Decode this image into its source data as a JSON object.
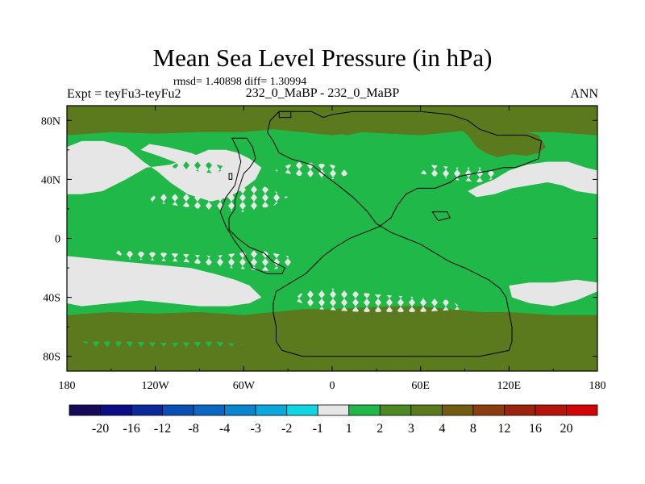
{
  "figure": {
    "title": "Mean Sea Level Pressure (in hPa)",
    "stats": "rmsd= 1.40898 diff= 1.30994",
    "left_label": "Expt = teyFu3-teyFu2",
    "center_label": "232_0_MaBP - 232_0_MaBP",
    "right_label": "ANN"
  },
  "colors": {
    "light": "#e6e6e6",
    "green": "#21b84a",
    "olive": "#5b7a1e",
    "coast": "#000000"
  },
  "chart_data": {
    "type": "heatmap",
    "title": "Mean Sea Level Pressure (in hPa)",
    "projection": "cylindrical equidistant",
    "xlim": [
      -180,
      180
    ],
    "ylim": [
      -90,
      90
    ],
    "x_ticks": [
      {
        "value": -180,
        "label": "180"
      },
      {
        "value": -120,
        "label": "120W"
      },
      {
        "value": -60,
        "label": "60W"
      },
      {
        "value": 0,
        "label": "0"
      },
      {
        "value": 60,
        "label": "60E"
      },
      {
        "value": 120,
        "label": "120E"
      },
      {
        "value": 180,
        "label": "180"
      }
    ],
    "y_ticks": [
      {
        "value": 80,
        "label": "80N"
      },
      {
        "value": 40,
        "label": "40N"
      },
      {
        "value": 0,
        "label": "0"
      },
      {
        "value": -40,
        "label": "40S"
      },
      {
        "value": -80,
        "label": "80S"
      }
    ],
    "colorbar": {
      "levels": [
        "-20",
        "-16",
        "-12",
        "-8",
        "-4",
        "-3",
        "-2",
        "-1",
        "1",
        "2",
        "3",
        "4",
        "8",
        "12",
        "16",
        "20"
      ],
      "colors": [
        "#150a5a",
        "#0b0c86",
        "#0a2a9c",
        "#0b4fb4",
        "#0a68c2",
        "#0a86ce",
        "#0aa8dc",
        "#10d6e4",
        "#e6e6e6",
        "#21b84a",
        "#4b8a22",
        "#5b7a1e",
        "#735b12",
        "#8a3d0e",
        "#9a250c",
        "#b4140a",
        "#d20606"
      ]
    },
    "regions": [
      {
        "name": "olive-north",
        "value": 3.5,
        "lon": [
          -180,
          180
        ],
        "lat": [
          70,
          90
        ]
      },
      {
        "name": "olive-south",
        "value": 3.5,
        "lon": [
          -180,
          180
        ],
        "lat": [
          -90,
          -52
        ]
      },
      {
        "name": "olive-siberia",
        "value": 3.5,
        "lon": [
          85,
          145
        ],
        "lat": [
          55,
          85
        ]
      },
      {
        "name": "olive-arctic-core",
        "value": 3.5,
        "lon": [
          -15,
          45
        ],
        "lat": [
          70,
          90
        ]
      },
      {
        "name": "green-background",
        "value": 1.5,
        "lon": [
          -180,
          180
        ],
        "lat": [
          -52,
          70
        ]
      },
      {
        "name": "light-npac",
        "value": 0.5,
        "lon": [
          -180,
          -40
        ],
        "lat": [
          15,
          65
        ]
      },
      {
        "name": "light-spac",
        "value": 0.5,
        "lon": [
          -180,
          -30
        ],
        "lat": [
          -50,
          -12
        ]
      },
      {
        "name": "light-nasia-pac",
        "value": 0.5,
        "lon": [
          80,
          180
        ],
        "lat": [
          25,
          50
        ]
      }
    ],
    "continent_outline": true
  }
}
